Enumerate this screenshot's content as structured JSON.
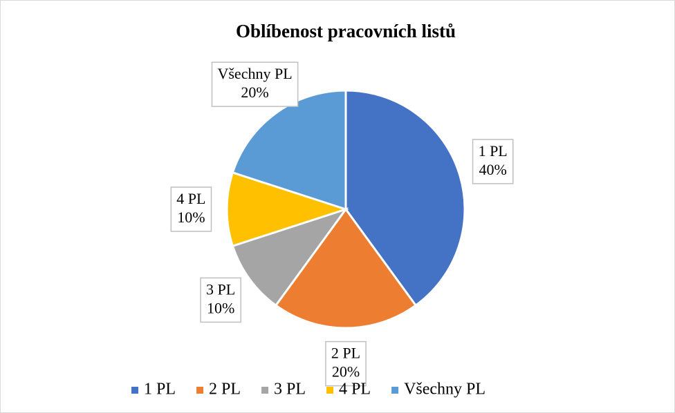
{
  "chart_data": {
    "type": "pie",
    "title": "Oblíbenost pracovních listů",
    "categories": [
      "1 PL",
      "2 PL",
      "3 PL",
      "4 PL",
      "Všechny PL"
    ],
    "values": [
      40,
      20,
      10,
      10,
      20
    ],
    "value_labels": [
      "40%",
      "20%",
      "10%",
      "10%",
      "20%"
    ],
    "colors": [
      "#4472c4",
      "#ed7d31",
      "#a5a5a5",
      "#ffc000",
      "#5b9bd5"
    ],
    "legend": "bottom"
  }
}
